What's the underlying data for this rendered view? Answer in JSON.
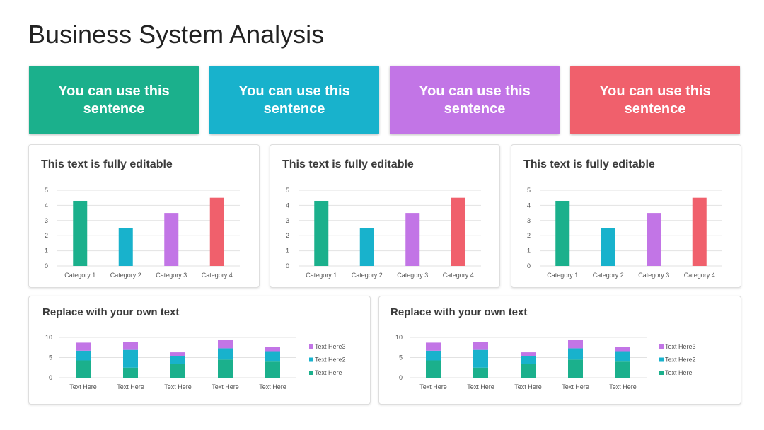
{
  "title": "Business System Analysis",
  "colors": {
    "green": "#1bb08c",
    "blue": "#18b2cc",
    "purple": "#c275e6",
    "red": "#f0606c"
  },
  "cards": [
    {
      "text": "You can use this sentence",
      "color": "#1bb08c"
    },
    {
      "text": "You can use this sentence",
      "color": "#18b2cc"
    },
    {
      "text": "You can use this sentence",
      "color": "#c275e6"
    },
    {
      "text": "You can use this sentence",
      "color": "#f0606c"
    }
  ],
  "bar_panels": [
    {
      "title": "This text is fully editable"
    },
    {
      "title": "This text is fully editable"
    },
    {
      "title": "This text is fully editable"
    }
  ],
  "stack_panels": [
    {
      "title": "Replace with your own text"
    },
    {
      "title": "Replace with your own text"
    }
  ],
  "chart_data": [
    {
      "type": "bar",
      "title": "This text is fully editable",
      "categories": [
        "Category 1",
        "Category 2",
        "Category 3",
        "Category 4"
      ],
      "values": [
        4.3,
        2.5,
        3.5,
        4.5
      ],
      "bar_colors": [
        "#1bb08c",
        "#18b2cc",
        "#c275e6",
        "#f0606c"
      ],
      "yticks": [
        "0",
        "1",
        "2",
        "3",
        "4",
        "5"
      ],
      "ylim": [
        0,
        5
      ],
      "grid": true
    },
    {
      "type": "bar",
      "title": "This text is fully editable",
      "categories": [
        "Category 1",
        "Category 2",
        "Category 3",
        "Category 4"
      ],
      "values": [
        4.3,
        2.5,
        3.5,
        4.5
      ],
      "bar_colors": [
        "#1bb08c",
        "#18b2cc",
        "#c275e6",
        "#f0606c"
      ],
      "yticks": [
        "0",
        "1",
        "2",
        "3",
        "4",
        "5"
      ],
      "ylim": [
        0,
        5
      ],
      "grid": true
    },
    {
      "type": "bar",
      "title": "This text is fully editable",
      "categories": [
        "Category 1",
        "Category 2",
        "Category 3",
        "Category 4"
      ],
      "values": [
        4.3,
        2.5,
        3.5,
        4.5
      ],
      "bar_colors": [
        "#1bb08c",
        "#18b2cc",
        "#c275e6",
        "#f0606c"
      ],
      "yticks": [
        "0",
        "1",
        "2",
        "3",
        "4",
        "5"
      ],
      "ylim": [
        0,
        5
      ],
      "grid": true
    },
    {
      "type": "bar",
      "stacked": true,
      "title": "Replace with your own text",
      "categories": [
        "Text Here",
        "Text Here",
        "Text Here",
        "Text Here",
        "Text Here"
      ],
      "series": [
        {
          "name": "Text Here",
          "color": "#1bb08c",
          "values": [
            4.3,
            2.5,
            3.5,
            4.5,
            4.0
          ]
        },
        {
          "name": "Text Here2",
          "color": "#18b2cc",
          "values": [
            2.4,
            4.4,
            1.8,
            2.8,
            2.4
          ]
        },
        {
          "name": "Text Here3",
          "color": "#c275e6",
          "values": [
            2.0,
            2.0,
            1.0,
            2.0,
            1.2
          ]
        }
      ],
      "yticks": [
        "0",
        "5",
        "10"
      ],
      "ylim": [
        0,
        10
      ],
      "grid": true,
      "legend": "right"
    },
    {
      "type": "bar",
      "stacked": true,
      "title": "Replace with your own text",
      "categories": [
        "Text Here",
        "Text Here",
        "Text Here",
        "Text Here",
        "Text Here"
      ],
      "series": [
        {
          "name": "Text Here",
          "color": "#1bb08c",
          "values": [
            4.3,
            2.5,
            3.5,
            4.5,
            4.0
          ]
        },
        {
          "name": "Text Here2",
          "color": "#18b2cc",
          "values": [
            2.4,
            4.4,
            1.8,
            2.8,
            2.4
          ]
        },
        {
          "name": "Text Here3",
          "color": "#c275e6",
          "values": [
            2.0,
            2.0,
            1.0,
            2.0,
            1.2
          ]
        }
      ],
      "yticks": [
        "0",
        "5",
        "10"
      ],
      "ylim": [
        0,
        10
      ],
      "grid": true,
      "legend": "right"
    }
  ]
}
